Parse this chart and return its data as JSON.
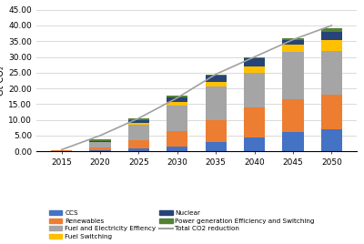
{
  "years": [
    2015,
    2020,
    2025,
    2030,
    2035,
    2040,
    2045,
    2050
  ],
  "CCS": [
    0.1,
    0.3,
    1.0,
    1.5,
    3.0,
    4.5,
    6.0,
    7.0
  ],
  "Renewables": [
    0.1,
    1.0,
    2.5,
    5.0,
    7.0,
    9.5,
    10.5,
    11.0
  ],
  "Fuel_and_Electricity_Effiency": [
    0.1,
    1.5,
    5.0,
    8.0,
    10.5,
    11.0,
    15.0,
    14.0
  ],
  "Fuel_Switching": [
    0.0,
    0.2,
    0.6,
    1.2,
    1.5,
    2.0,
    2.5,
    3.5
  ],
  "Nuclear": [
    0.05,
    0.3,
    0.8,
    1.5,
    2.0,
    2.5,
    1.5,
    2.5
  ],
  "Power_gen_Efficiency_Switching": [
    0.05,
    0.5,
    0.5,
    0.5,
    0.3,
    0.5,
    0.5,
    1.0
  ],
  "Total_CO2_reduction": [
    0.5,
    5.0,
    10.5,
    17.0,
    24.5,
    30.0,
    35.5,
    40.0
  ],
  "colors": {
    "CCS": "#4472C4",
    "Renewables": "#ED7D31",
    "Fuel_and_Electricity_Effiency": "#A5A5A5",
    "Fuel_Switching": "#FFC000",
    "Nuclear": "#264478",
    "Power_gen_Efficiency_Switching": "#548235"
  },
  "ylim": [
    0,
    45
  ],
  "yticks": [
    0.0,
    5.0,
    10.0,
    15.0,
    20.0,
    25.0,
    30.0,
    35.0,
    40.0,
    45.0
  ],
  "ylabel": "Gt CO₂",
  "line_color": "#A0A0A0",
  "background_color": "#FFFFFF",
  "legend_labels": {
    "CCS": "CCS",
    "Renewables": "Renewables",
    "Fuel_and_Electricity_Effiency": "Fuel and Electricity Effiency",
    "Fuel_Switching": "Fuel Switching",
    "Nuclear": "Nuclear",
    "Power_gen_Efficiency_Switching": "Power generation Efficiency and Switching",
    "Total_CO2_reduction": "Total CO2 reduction"
  }
}
